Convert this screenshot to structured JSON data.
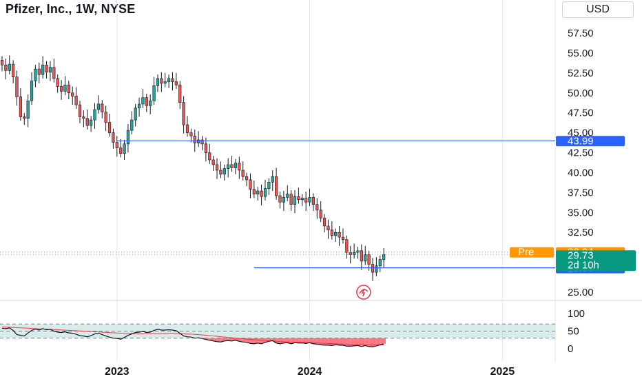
{
  "header": {
    "title": "Pfizer, Inc., 1W, NYSE",
    "currency": "USD"
  },
  "colors": {
    "up": "#26a69a",
    "down": "#ef5350",
    "line": "#2962ff",
    "pre": "#ff9800",
    "last": "#089981",
    "rsi_line": "#131722",
    "rsi_ma": "#f23645",
    "rsi_band": "#c8e6e0"
  },
  "chart_data": {
    "type": "candlestick",
    "title": "Pfizer, Inc., 1W, NYSE",
    "xlabel": "",
    "ylabel": "",
    "ylim": [
      23.5,
      61
    ],
    "yticks": [
      25.0,
      32.5,
      35.0,
      37.5,
      40.0,
      42.5,
      45.0,
      47.5,
      50.0,
      52.5,
      55.0,
      57.5
    ],
    "ytick_labels": [
      "25.00",
      "32.50",
      "35.00",
      "37.50",
      "40.00",
      "42.50",
      "45.00",
      "47.50",
      "50.00",
      "52.50",
      "55.00",
      "57.50"
    ],
    "xticks": [
      {
        "label": "2023",
        "week": 52
      },
      {
        "label": "2024",
        "week": 104
      },
      {
        "label": "2025",
        "week": 156
      }
    ],
    "weeks_start": 21,
    "weeks_per_year": 52,
    "closes": [
      53.5,
      52.8,
      53.6,
      52.0,
      49.5,
      47.0,
      46.8,
      49.0,
      51.5,
      53.0,
      52.3,
      53.5,
      52.6,
      53.2,
      51.8,
      50.8,
      50.2,
      51.0,
      50.0,
      49.6,
      48.5,
      47.0,
      46.8,
      45.9,
      46.6,
      47.9,
      48.6,
      47.6,
      46.3,
      45.0,
      43.8,
      43.1,
      42.4,
      43.6,
      45.3,
      46.6,
      48.1,
      48.6,
      49.4,
      48.4,
      49.0,
      50.9,
      51.8,
      51.2,
      51.4,
      51.8,
      51.4,
      51.0,
      48.8,
      46.0,
      45.0,
      44.6,
      43.7,
      44.1,
      43.6,
      42.5,
      41.6,
      41.0,
      40.3,
      39.8,
      40.5,
      41.0,
      40.6,
      41.2,
      40.3,
      39.5,
      39.1,
      37.9,
      37.3,
      37.7,
      37.0,
      38.0,
      38.8,
      39.5,
      37.1,
      36.3,
      36.9,
      37.3,
      36.0,
      37.0,
      36.6,
      36.8,
      36.3,
      36.9,
      36.0,
      35.3,
      34.3,
      33.3,
      32.8,
      32.1,
      32.5,
      31.9,
      31.6,
      30.0,
      29.7,
      30.0,
      30.2,
      28.9,
      29.7,
      28.5,
      27.5,
      28.3,
      29.1,
      29.73
    ],
    "bars": [],
    "horizontal_lines": [
      {
        "value": 43.99,
        "label": "43.99",
        "from_week": 52
      },
      {
        "value": 28.06,
        "label": "28.06",
        "from_week": 89
      }
    ],
    "price_tags": [
      {
        "kind": "pre",
        "name": "Pre",
        "value": 30.04,
        "label": "30.04"
      },
      {
        "kind": "last",
        "value": 29.73,
        "label": "29.73",
        "countdown": "2d 10h"
      }
    ],
    "rsi": {
      "ylim": [
        0,
        100
      ],
      "yticks": [
        0,
        50,
        100
      ],
      "ytick_labels": [
        "0",
        "50",
        "100"
      ],
      "band": [
        30,
        70
      ],
      "values": [
        58,
        57,
        59,
        52,
        40,
        38,
        36,
        45,
        52,
        56,
        53,
        57,
        54,
        55,
        50,
        47,
        46,
        48,
        45,
        44,
        41,
        37,
        36,
        34,
        37,
        42,
        44,
        40,
        36,
        33,
        30,
        29,
        27,
        32,
        38,
        42,
        46,
        47,
        49,
        46,
        47,
        52,
        55,
        53,
        53,
        54,
        53,
        51,
        44,
        36,
        34,
        33,
        30,
        31,
        29,
        26,
        24,
        22,
        20,
        19,
        22,
        23,
        22,
        24,
        21,
        19,
        18,
        15,
        14,
        16,
        14,
        18,
        21,
        23,
        16,
        14,
        16,
        17,
        14,
        17,
        16,
        16,
        15,
        17,
        14,
        13,
        11,
        10,
        10,
        9,
        11,
        10,
        10,
        7,
        7,
        8,
        9,
        6,
        9,
        6,
        5,
        8,
        11,
        14
      ],
      "ma": [
        62,
        61.5,
        61,
        60.5,
        60,
        59.5,
        58.8,
        58.2,
        57.6,
        57,
        56.4,
        56,
        55.5,
        55,
        54.5,
        54,
        53.4,
        52.8,
        52.2,
        51.6,
        51,
        50.5,
        50,
        49.4,
        48.8,
        48.2,
        47.6,
        47,
        46.3,
        45.7,
        45.1,
        44.6,
        44.1,
        43.7,
        43.4,
        43.1,
        42.9,
        42.8,
        42.8,
        42.8,
        42.9,
        43,
        43.1,
        43.1,
        43.2,
        43.3,
        43.3,
        43.2,
        42.9,
        42.5,
        42,
        41.4,
        40.7,
        40,
        39.2,
        38.3,
        37.3,
        36.3,
        35.2,
        34.1,
        33.1,
        32.1,
        31.1,
        30.2,
        29.3,
        28.4,
        27.5,
        26.5,
        25.6,
        24.7,
        23.8,
        23.1,
        22.4,
        21.8,
        21.1,
        20.4,
        19.8,
        19.3,
        18.7,
        18.2,
        17.8,
        17.4,
        17,
        16.7,
        16.3,
        16,
        15.6,
        15.2,
        14.9,
        14.5,
        14.1,
        13.7,
        13.4,
        13,
        12.6,
        12.3,
        12,
        11.6,
        11.3,
        11,
        10.7,
        10.6,
        10.6,
        10.7
      ]
    }
  }
}
